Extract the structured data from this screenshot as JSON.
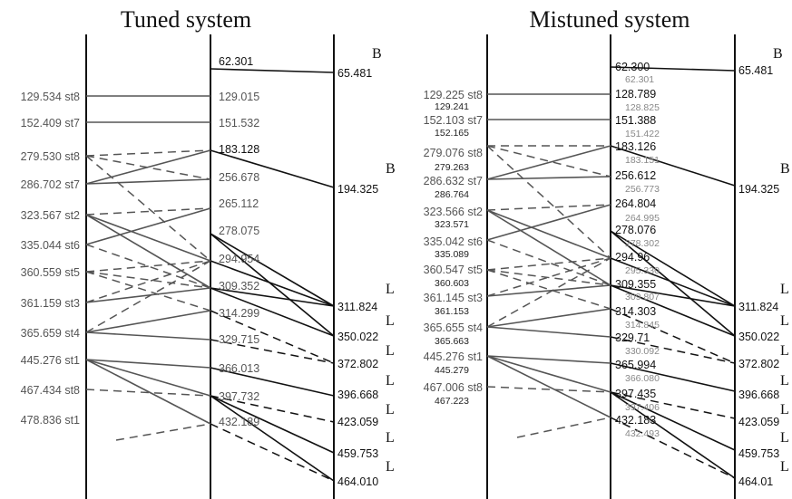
{
  "panels": [
    {
      "title": "Tuned system",
      "left": [
        {
          "text": "129.534 st8"
        },
        {
          "text": "152.409 st7"
        },
        {
          "text": "279.530 st8"
        },
        {
          "text": "286.702 st7"
        },
        {
          "text": "323.567 st2"
        },
        {
          "text": "335.044 st6"
        },
        {
          "text": "360.559 st5"
        },
        {
          "text": "361.159 st3"
        },
        {
          "text": "365.659 st4"
        },
        {
          "text": "445.276 st1"
        },
        {
          "text": "467.434 st8"
        },
        {
          "text": "478.836 st1"
        }
      ],
      "mid": [
        {
          "text": "62.301"
        },
        {
          "text": "129.015"
        },
        {
          "text": "151.532"
        },
        {
          "text": "183.128"
        },
        {
          "text": "256.678"
        },
        {
          "text": "265.112"
        },
        {
          "text": "278.075"
        },
        {
          "text": "294.954"
        },
        {
          "text": "309.352"
        },
        {
          "text": "314.299"
        },
        {
          "text": "329.715"
        },
        {
          "text": "366.013"
        },
        {
          "text": "397.732"
        },
        {
          "text": "432.189"
        }
      ],
      "right": [
        {
          "text": "65.481",
          "mark": "B"
        },
        {
          "text": "194.325",
          "mark": "B"
        },
        {
          "text": "311.824",
          "mark": "L"
        },
        {
          "text": "350.022",
          "mark": "L"
        },
        {
          "text": "372.802",
          "mark": "L"
        },
        {
          "text": "396.668",
          "mark": "L"
        },
        {
          "text": "423.059",
          "mark": "L"
        },
        {
          "text": "459.753",
          "mark": "L"
        },
        {
          "text": "464.010",
          "mark": "L"
        }
      ]
    },
    {
      "title": "Mistuned system",
      "left": [
        {
          "text": "129.225 st8",
          "sub": "129.241"
        },
        {
          "text": "152.103 st7",
          "sub": "152.165"
        },
        {
          "text": "279.076 st8",
          "sub": "279.263"
        },
        {
          "text": "286.632 st7",
          "sub": "286.764"
        },
        {
          "text": "323.566 st2",
          "sub": "323.571"
        },
        {
          "text": "335.042 st6",
          "sub": "335.089"
        },
        {
          "text": "360.547 st5",
          "sub": "360.603"
        },
        {
          "text": "361.145 st3",
          "sub": "361.153"
        },
        {
          "text": "365.655 st4",
          "sub": "365.663"
        },
        {
          "text": "445.276 st1",
          "sub": "445.279"
        },
        {
          "text": "467.006 st8",
          "sub": "467.223"
        }
      ],
      "mid": [
        {
          "text": "62.300",
          "sub": "62.301"
        },
        {
          "text": "128.789",
          "sub": "128.825"
        },
        {
          "text": "151.388",
          "sub": "151.422"
        },
        {
          "text": "183.126",
          "sub": "183.151"
        },
        {
          "text": "256.612",
          "sub": "256.773"
        },
        {
          "text": "264.804",
          "sub": "264.995"
        },
        {
          "text": "278.076",
          "sub": "278.302"
        },
        {
          "text": "294.96",
          "sub": "295.330"
        },
        {
          "text": "309.355",
          "sub": "309.807"
        },
        {
          "text": "314.303",
          "sub": "314.845"
        },
        {
          "text": "329.71",
          "sub": "330.092"
        },
        {
          "text": "365.994",
          "sub": "366.080"
        },
        {
          "text": "397.435",
          "sub": "397.406"
        },
        {
          "text": "432.183",
          "sub": "432.493"
        }
      ],
      "right": [
        {
          "text": "65.481",
          "mark": "B"
        },
        {
          "text": "194.325",
          "mark": "B"
        },
        {
          "text": "311.824",
          "mark": "L"
        },
        {
          "text": "350.022",
          "mark": "L"
        },
        {
          "text": "372.802",
          "mark": "L"
        },
        {
          "text": "396.668",
          "mark": "L"
        },
        {
          "text": "423.059",
          "mark": "L"
        },
        {
          "text": "459.753",
          "mark": "L"
        },
        {
          "text": "464.01",
          "mark": "L"
        }
      ]
    }
  ]
}
